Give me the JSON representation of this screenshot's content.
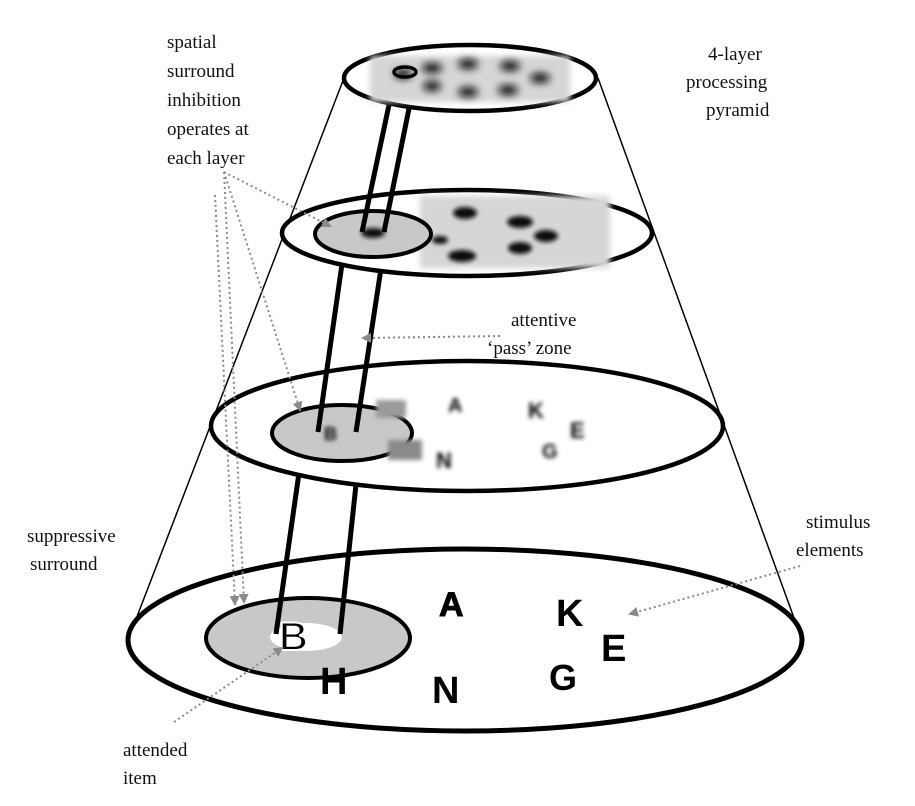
{
  "labels": {
    "pyramid": [
      "4-layer",
      "processing",
      "pyramid"
    ],
    "inhibition": [
      "spatial",
      "surround",
      "inhibition",
      "operates at",
      "each layer"
    ],
    "pass_zone": [
      "attentive",
      "‘pass’ zone"
    ],
    "suppressive": [
      "suppressive",
      "surround"
    ],
    "stimulus": [
      "stimulus",
      "elements"
    ],
    "attended": [
      "attended",
      "item"
    ]
  },
  "stimulus_letters": [
    "A",
    "K",
    "E",
    "B",
    "H",
    "N",
    "G"
  ],
  "colors": {
    "stroke": "#000000",
    "surround_fill": "#c8c8c8",
    "blur_fill": "#d6d6d6",
    "arrow": "#8a8a8a"
  }
}
